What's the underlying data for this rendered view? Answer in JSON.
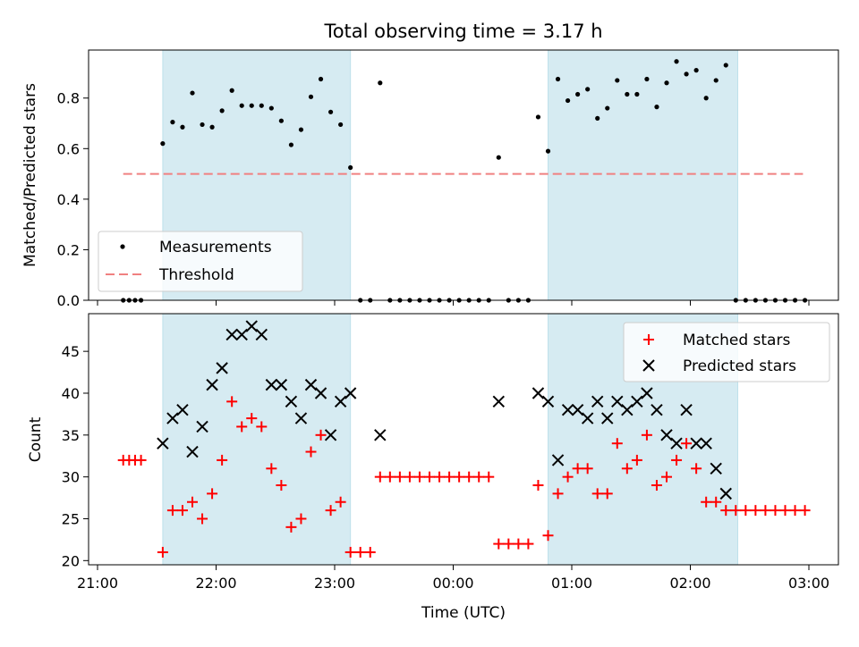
{
  "chart_data": {
    "title": "Total observing time = 3.17 h",
    "xlabel": "Time (UTC)",
    "x_ticks": [
      {
        "t": 0,
        "label": "21:00"
      },
      {
        "t": 60,
        "label": "22:00"
      },
      {
        "t": 120,
        "label": "23:00"
      },
      {
        "t": 180,
        "label": "00:00"
      },
      {
        "t": 240,
        "label": "01:00"
      },
      {
        "t": 300,
        "label": "02:00"
      },
      {
        "t": 360,
        "label": "03:00"
      }
    ],
    "observing_windows": [
      {
        "start": "21:33",
        "end": "23:08"
      },
      {
        "start": "00:48",
        "end": "02:24"
      }
    ],
    "top_panel": {
      "type": "scatter",
      "ylabel": "Matched/Predicted stars",
      "ylim": [
        0,
        0.99
      ],
      "y_ticks": [
        "0.0",
        "0.2",
        "0.4",
        "0.6",
        "0.8"
      ],
      "threshold": {
        "value": 0.5,
        "x_start": "21:13",
        "x_end": "02:57"
      },
      "legend": {
        "position": "lower-left",
        "entries": [
          "Measurements",
          "Threshold"
        ]
      },
      "series": [
        {
          "name": "Measurements",
          "color": "#000000",
          "points": [
            [
              13,
              0
            ],
            [
              16,
              0
            ],
            [
              19,
              0
            ],
            [
              22,
              0
            ],
            [
              33,
              0.62
            ],
            [
              38,
              0.705
            ],
            [
              43,
              0.685
            ],
            [
              48,
              0.82
            ],
            [
              53,
              0.695
            ],
            [
              58,
              0.685
            ],
            [
              63,
              0.75
            ],
            [
              68,
              0.83
            ],
            [
              73,
              0.77
            ],
            [
              78,
              0.77
            ],
            [
              83,
              0.77
            ],
            [
              88,
              0.76
            ],
            [
              93,
              0.71
            ],
            [
              98,
              0.615
            ],
            [
              103,
              0.675
            ],
            [
              108,
              0.805
            ],
            [
              113,
              0.875
            ],
            [
              118,
              0.745
            ],
            [
              123,
              0.695
            ],
            [
              128,
              0.525
            ],
            [
              133,
              0
            ],
            [
              138,
              0
            ],
            [
              143,
              0.86
            ],
            [
              148,
              0
            ],
            [
              153,
              0
            ],
            [
              158,
              0
            ],
            [
              163,
              0
            ],
            [
              168,
              0
            ],
            [
              173,
              0
            ],
            [
              178,
              0
            ],
            [
              183,
              0
            ],
            [
              188,
              0
            ],
            [
              193,
              0
            ],
            [
              198,
              0
            ],
            [
              203,
              0.565
            ],
            [
              208,
              0
            ],
            [
              213,
              0
            ],
            [
              218,
              0
            ],
            [
              223,
              0.725
            ],
            [
              228,
              0.59
            ],
            [
              233,
              0.875
            ],
            [
              238,
              0.79
            ],
            [
              243,
              0.815
            ],
            [
              248,
              0.835
            ],
            [
              253,
              0.72
            ],
            [
              258,
              0.76
            ],
            [
              263,
              0.87
            ],
            [
              268,
              0.815
            ],
            [
              273,
              0.815
            ],
            [
              278,
              0.875
            ],
            [
              283,
              0.765
            ],
            [
              288,
              0.86
            ],
            [
              293,
              0.945
            ],
            [
              298,
              0.895
            ],
            [
              303,
              0.91
            ],
            [
              308,
              0.8
            ],
            [
              313,
              0.87
            ],
            [
              318,
              0.93
            ],
            [
              323,
              0
            ],
            [
              328,
              0
            ],
            [
              333,
              0
            ],
            [
              338,
              0
            ],
            [
              343,
              0
            ],
            [
              348,
              0
            ],
            [
              353,
              0
            ],
            [
              358,
              0
            ]
          ]
        }
      ]
    },
    "bottom_panel": {
      "type": "scatter",
      "ylabel": "Count",
      "ylim": [
        19.5,
        49.5
      ],
      "y_ticks": [
        "20",
        "25",
        "30",
        "35",
        "40",
        "45"
      ],
      "legend": {
        "position": "top-right",
        "entries": [
          "Matched stars",
          "Predicted stars"
        ]
      },
      "series": [
        {
          "name": "Matched stars",
          "color": "#ff0000",
          "marker": "plus",
          "points": [
            [
              13,
              32
            ],
            [
              16,
              32
            ],
            [
              19,
              32
            ],
            [
              22,
              32
            ],
            [
              33,
              21
            ],
            [
              38,
              26
            ],
            [
              43,
              26
            ],
            [
              48,
              27
            ],
            [
              53,
              25
            ],
            [
              58,
              28
            ],
            [
              63,
              32
            ],
            [
              68,
              39
            ],
            [
              73,
              36
            ],
            [
              78,
              37
            ],
            [
              83,
              36
            ],
            [
              88,
              31
            ],
            [
              93,
              29
            ],
            [
              98,
              24
            ],
            [
              103,
              25
            ],
            [
              108,
              33
            ],
            [
              113,
              35
            ],
            [
              118,
              26
            ],
            [
              123,
              27
            ],
            [
              128,
              21
            ],
            [
              133,
              21
            ],
            [
              138,
              21
            ],
            [
              143,
              30
            ],
            [
              148,
              30
            ],
            [
              153,
              30
            ],
            [
              158,
              30
            ],
            [
              163,
              30
            ],
            [
              168,
              30
            ],
            [
              173,
              30
            ],
            [
              178,
              30
            ],
            [
              183,
              30
            ],
            [
              188,
              30
            ],
            [
              193,
              30
            ],
            [
              198,
              30
            ],
            [
              203,
              22
            ],
            [
              208,
              22
            ],
            [
              213,
              22
            ],
            [
              218,
              22
            ],
            [
              223,
              29
            ],
            [
              228,
              23
            ],
            [
              233,
              28
            ],
            [
              238,
              30
            ],
            [
              243,
              31
            ],
            [
              248,
              31
            ],
            [
              253,
              28
            ],
            [
              258,
              28
            ],
            [
              263,
              34
            ],
            [
              268,
              31
            ],
            [
              273,
              32
            ],
            [
              278,
              35
            ],
            [
              283,
              29
            ],
            [
              288,
              30
            ],
            [
              293,
              32
            ],
            [
              298,
              34
            ],
            [
              303,
              31
            ],
            [
              308,
              27
            ],
            [
              313,
              27
            ],
            [
              318,
              26
            ],
            [
              323,
              26
            ],
            [
              328,
              26
            ],
            [
              333,
              26
            ],
            [
              338,
              26
            ],
            [
              343,
              26
            ],
            [
              348,
              26
            ],
            [
              353,
              26
            ],
            [
              358,
              26
            ]
          ]
        },
        {
          "name": "Predicted stars",
          "color": "#000000",
          "marker": "x",
          "points": [
            [
              33,
              34
            ],
            [
              38,
              37
            ],
            [
              43,
              38
            ],
            [
              48,
              33
            ],
            [
              53,
              36
            ],
            [
              58,
              41
            ],
            [
              63,
              43
            ],
            [
              68,
              47
            ],
            [
              73,
              47
            ],
            [
              78,
              48
            ],
            [
              83,
              47
            ],
            [
              88,
              41
            ],
            [
              93,
              41
            ],
            [
              98,
              39
            ],
            [
              103,
              37
            ],
            [
              108,
              41
            ],
            [
              113,
              40
            ],
            [
              118,
              35
            ],
            [
              123,
              39
            ],
            [
              128,
              40
            ],
            [
              143,
              35
            ],
            [
              203,
              39
            ],
            [
              223,
              40
            ],
            [
              228,
              39
            ],
            [
              233,
              32
            ],
            [
              238,
              38
            ],
            [
              243,
              38
            ],
            [
              248,
              37
            ],
            [
              253,
              39
            ],
            [
              258,
              37
            ],
            [
              263,
              39
            ],
            [
              268,
              38
            ],
            [
              273,
              39
            ],
            [
              278,
              40
            ],
            [
              283,
              38
            ],
            [
              288,
              35
            ],
            [
              293,
              34
            ],
            [
              298,
              38
            ],
            [
              303,
              34
            ],
            [
              308,
              34
            ],
            [
              313,
              31
            ],
            [
              318,
              28
            ]
          ]
        }
      ]
    }
  }
}
